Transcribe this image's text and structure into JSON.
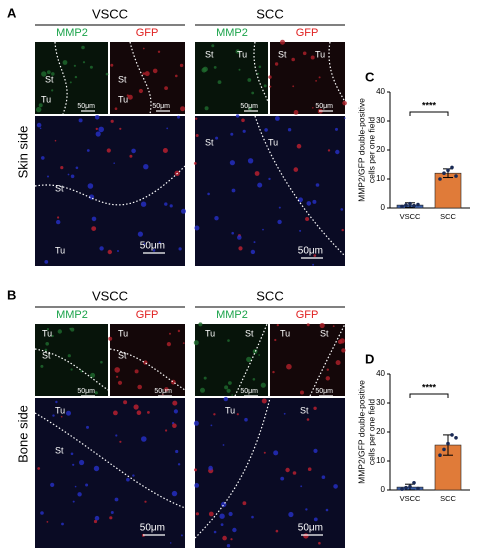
{
  "figure": {
    "panels": [
      {
        "letter": "A",
        "side": "Skin side",
        "groups": [
          {
            "title": "VSCC",
            "channels": [
              "MMP2",
              "GFP"
            ],
            "images": [
              {
                "labels": [
                  "St",
                  "Tu",
                  "50μm"
                ]
              },
              {
                "labels": [
                  "St",
                  "Tu",
                  "50μm"
                ]
              },
              {
                "labels": [
                  "St",
                  "Tu",
                  "50μm"
                ]
              }
            ]
          },
          {
            "title": "SCC",
            "channels": [
              "MMP2",
              "GFP"
            ],
            "images": [
              {
                "labels": [
                  "St",
                  "Tu",
                  "50μm"
                ]
              },
              {
                "labels": [
                  "St",
                  "Tu",
                  "50μm"
                ]
              },
              {
                "labels": [
                  "St",
                  "Tu",
                  "50μm"
                ]
              }
            ]
          }
        ]
      },
      {
        "letter": "B",
        "side": "Bone side",
        "groups": [
          {
            "title": "VSCC",
            "channels": [
              "MMP2",
              "GFP"
            ],
            "images": [
              {
                "labels": [
                  "Tu",
                  "St",
                  "50μm"
                ]
              },
              {
                "labels": [
                  "Tu",
                  "St",
                  "50μm"
                ]
              },
              {
                "labels": [
                  "Tu",
                  "St",
                  "50μm"
                ]
              }
            ]
          },
          {
            "title": "SCC",
            "channels": [
              "MMP2",
              "GFP"
            ],
            "images": [
              {
                "labels": [
                  "Tu",
                  "St",
                  "50μm"
                ]
              },
              {
                "labels": [
                  "Tu",
                  "St",
                  "50μm"
                ]
              },
              {
                "labels": [
                  "Tu",
                  "St",
                  "50μm"
                ]
              }
            ]
          }
        ]
      }
    ]
  },
  "chart_data": [
    {
      "type": "bar",
      "panel_label": "C",
      "ylabel": [
        "MMP2/GFP double-positive",
        "cells per one field"
      ],
      "categories": [
        "VSCC",
        "SCC"
      ],
      "values": [
        1,
        12
      ],
      "errors": [
        0.8,
        1.5
      ],
      "points": [
        [
          0.5,
          1,
          1.5,
          0.8,
          1.2
        ],
        [
          10,
          12,
          13,
          14,
          11
        ]
      ],
      "colors": [
        "#3b5fa8",
        "#e07b39"
      ],
      "significance": "****",
      "ylim": [
        0,
        40
      ],
      "yticks": [
        0,
        10,
        20,
        30,
        40
      ]
    },
    {
      "type": "bar",
      "panel_label": "D",
      "ylabel": [
        "MMP2/GFP double-positive",
        "cells per one field"
      ],
      "categories": [
        "VSCC",
        "SCC"
      ],
      "values": [
        1,
        15.5
      ],
      "errors": [
        1,
        3.5
      ],
      "points": [
        [
          0.3,
          0.8,
          1.2,
          2.5,
          0.5
        ],
        [
          12,
          14,
          16,
          19,
          18
        ]
      ],
      "colors": [
        "#3b5fa8",
        "#e07b39"
      ],
      "significance": "****",
      "ylim": [
        0,
        40
      ],
      "yticks": [
        0,
        10,
        20,
        30,
        40
      ]
    }
  ]
}
